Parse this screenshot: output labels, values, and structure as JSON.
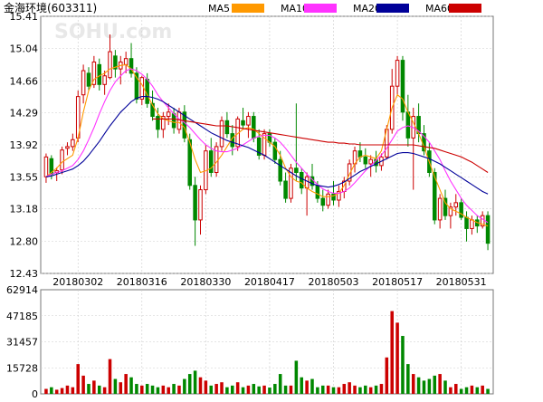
{
  "header": {
    "stock_title": "金海环境(603311)"
  },
  "watermark": "SOHU.com",
  "chart_data": [
    {
      "type": "candlestick",
      "title": "金海环境(603311)",
      "y_ticks": [
        "15.41",
        "15.04",
        "14.66",
        "14.29",
        "13.92",
        "13.55",
        "13.18",
        "12.80",
        "12.43"
      ],
      "ylim": [
        12.43,
        15.41
      ],
      "x_ticks": [
        "20180302",
        "20180316",
        "20180330",
        "20180417",
        "20180503",
        "20180517",
        "20180531"
      ],
      "legend": [
        {
          "name": "MA5",
          "color": "#ff9900"
        },
        {
          "name": "MA10",
          "color": "#ff33ff"
        },
        {
          "name": "MA20",
          "color": "#000099"
        },
        {
          "name": "MA60",
          "color": "#cc0000"
        }
      ],
      "up_color": "#cc0000",
      "down_color": "#008800",
      "candles": [
        [
          13.55,
          13.82,
          13.48,
          13.78
        ],
        [
          13.76,
          13.8,
          13.52,
          13.58
        ],
        [
          13.6,
          13.66,
          13.5,
          13.62
        ],
        [
          13.63,
          13.9,
          13.58,
          13.86
        ],
        [
          13.88,
          13.95,
          13.8,
          13.9
        ],
        [
          13.9,
          14.05,
          13.85,
          13.98
        ],
        [
          14.0,
          14.55,
          13.95,
          14.48
        ],
        [
          14.5,
          14.85,
          14.4,
          14.78
        ],
        [
          14.75,
          14.82,
          14.55,
          14.6
        ],
        [
          14.62,
          14.95,
          14.58,
          14.88
        ],
        [
          14.85,
          14.92,
          14.55,
          14.62
        ],
        [
          14.62,
          14.78,
          14.5,
          14.72
        ],
        [
          14.7,
          15.2,
          14.68,
          15.0
        ],
        [
          14.95,
          15.02,
          14.7,
          14.8
        ],
        [
          14.8,
          14.95,
          14.62,
          14.88
        ],
        [
          14.85,
          15.0,
          14.75,
          14.92
        ],
        [
          14.92,
          15.1,
          14.7,
          14.75
        ],
        [
          14.75,
          14.82,
          14.4,
          14.45
        ],
        [
          14.45,
          14.72,
          14.38,
          14.7
        ],
        [
          14.68,
          14.75,
          14.35,
          14.4
        ],
        [
          14.4,
          14.55,
          14.2,
          14.25
        ],
        [
          14.25,
          14.35,
          14.0,
          14.1
        ],
        [
          14.1,
          14.3,
          14.0,
          14.25
        ],
        [
          14.25,
          14.4,
          14.15,
          14.3
        ],
        [
          14.28,
          14.35,
          14.05,
          14.12
        ],
        [
          14.1,
          14.35,
          14.05,
          14.3
        ],
        [
          14.3,
          14.38,
          13.95,
          14.0
        ],
        [
          13.98,
          14.05,
          13.4,
          13.45
        ],
        [
          13.45,
          13.55,
          12.75,
          13.05
        ],
        [
          13.05,
          13.45,
          12.88,
          13.4
        ],
        [
          13.4,
          13.92,
          13.35,
          13.85
        ],
        [
          13.85,
          14.0,
          13.55,
          13.6
        ],
        [
          13.6,
          13.95,
          13.55,
          13.9
        ],
        [
          13.9,
          14.25,
          13.85,
          14.2
        ],
        [
          14.2,
          14.3,
          14.0,
          14.05
        ],
        [
          14.05,
          14.15,
          13.8,
          13.9
        ],
        [
          13.9,
          14.25,
          13.85,
          14.22
        ],
        [
          14.2,
          14.35,
          14.1,
          14.15
        ],
        [
          14.15,
          14.3,
          14.0,
          14.25
        ],
        [
          14.25,
          14.3,
          13.95,
          14.0
        ],
        [
          14.0,
          14.1,
          13.75,
          13.8
        ],
        [
          13.8,
          14.1,
          13.75,
          14.05
        ],
        [
          14.05,
          14.1,
          13.9,
          13.95
        ],
        [
          13.95,
          14.0,
          13.7,
          13.75
        ],
        [
          13.75,
          13.85,
          13.45,
          13.5
        ],
        [
          13.5,
          13.6,
          13.25,
          13.3
        ],
        [
          13.3,
          13.7,
          13.25,
          13.65
        ],
        [
          13.65,
          14.4,
          13.5,
          13.6
        ],
        [
          13.6,
          13.65,
          13.35,
          13.42
        ],
        [
          13.42,
          13.6,
          13.1,
          13.55
        ],
        [
          13.55,
          13.7,
          13.4,
          13.45
        ],
        [
          13.45,
          13.5,
          13.25,
          13.3
        ],
        [
          13.3,
          13.4,
          13.15,
          13.22
        ],
        [
          13.22,
          13.4,
          13.18,
          13.35
        ],
        [
          13.35,
          13.5,
          13.22,
          13.28
        ],
        [
          13.28,
          13.45,
          13.2,
          13.38
        ],
        [
          13.38,
          13.55,
          13.3,
          13.5
        ],
        [
          13.5,
          13.75,
          13.45,
          13.7
        ],
        [
          13.7,
          13.9,
          13.6,
          13.85
        ],
        [
          13.85,
          13.95,
          13.72,
          13.78
        ],
        [
          13.78,
          13.88,
          13.65,
          13.7
        ],
        [
          13.7,
          13.8,
          13.55,
          13.75
        ],
        [
          13.75,
          13.85,
          13.6,
          13.68
        ],
        [
          13.68,
          13.82,
          13.62,
          13.78
        ],
        [
          13.78,
          14.15,
          13.75,
          14.1
        ],
        [
          14.1,
          14.8,
          14.05,
          14.6
        ],
        [
          14.6,
          14.95,
          14.5,
          14.9
        ],
        [
          14.9,
          14.95,
          14.2,
          14.3
        ],
        [
          14.3,
          14.5,
          13.9,
          14.0
        ],
        [
          14.0,
          14.35,
          13.4,
          14.25
        ],
        [
          14.25,
          14.4,
          13.95,
          14.05
        ],
        [
          14.05,
          14.15,
          13.8,
          13.85
        ],
        [
          13.85,
          13.95,
          13.55,
          13.6
        ],
        [
          13.6,
          13.65,
          13.0,
          13.05
        ],
        [
          13.05,
          13.35,
          12.95,
          13.3
        ],
        [
          13.3,
          13.4,
          13.05,
          13.1
        ],
        [
          13.1,
          13.25,
          12.95,
          13.2
        ],
        [
          13.2,
          13.35,
          13.1,
          13.25
        ],
        [
          13.25,
          13.3,
          13.05,
          13.08
        ],
        [
          13.08,
          13.15,
          12.8,
          12.95
        ],
        [
          12.95,
          13.1,
          12.88,
          13.05
        ],
        [
          13.05,
          13.1,
          12.9,
          12.98
        ],
        [
          12.98,
          13.15,
          12.95,
          13.1
        ],
        [
          13.1,
          13.15,
          12.7,
          12.78
        ]
      ],
      "ma": {
        "MA5": [
          13.55,
          13.6,
          13.65,
          13.72,
          13.76,
          13.8,
          14.0,
          14.3,
          14.55,
          14.68,
          14.72,
          14.75,
          14.8,
          14.82,
          14.84,
          14.85,
          14.8,
          14.7,
          14.62,
          14.5,
          14.38,
          14.28,
          14.22,
          14.2,
          14.18,
          14.18,
          14.12,
          13.95,
          13.75,
          13.6,
          13.62,
          13.65,
          13.72,
          13.8,
          13.9,
          14.0,
          14.05,
          14.1,
          14.12,
          14.1,
          14.05,
          14.0,
          13.95,
          13.9,
          13.8,
          13.65,
          13.55,
          13.5,
          13.48,
          13.42,
          13.38,
          13.35,
          13.32,
          13.32,
          13.33,
          13.36,
          13.45,
          13.58,
          13.7,
          13.78,
          13.8,
          13.78,
          13.76,
          13.85,
          14.1,
          14.35,
          14.5,
          14.45,
          14.3,
          14.18,
          14.05,
          13.9,
          13.72,
          13.55,
          13.4,
          13.25,
          13.18,
          13.15,
          13.12,
          13.08,
          13.05,
          13.02,
          13.0,
          12.98
        ],
        "MA10": [
          13.55,
          13.58,
          13.6,
          13.62,
          13.65,
          13.68,
          13.75,
          13.85,
          13.98,
          14.12,
          14.28,
          14.42,
          14.55,
          14.65,
          14.72,
          14.78,
          14.8,
          14.78,
          14.74,
          14.68,
          14.6,
          14.5,
          14.42,
          14.35,
          14.28,
          14.22,
          14.18,
          14.12,
          14.05,
          13.98,
          13.92,
          13.88,
          13.85,
          13.84,
          13.84,
          13.86,
          13.88,
          13.92,
          13.96,
          14.0,
          14.02,
          14.03,
          14.03,
          14.0,
          13.95,
          13.88,
          13.8,
          13.72,
          13.65,
          13.58,
          13.52,
          13.46,
          13.41,
          13.38,
          13.36,
          13.36,
          13.38,
          13.42,
          13.48,
          13.55,
          13.62,
          13.68,
          13.74,
          13.8,
          13.88,
          13.98,
          14.08,
          14.12,
          14.14,
          14.12,
          14.08,
          14.02,
          13.95,
          13.85,
          13.75,
          13.62,
          13.5,
          13.4,
          13.3,
          13.22,
          13.16,
          13.1,
          13.06,
          13.02
        ],
        "MA20": [
          13.55,
          13.56,
          13.58,
          13.6,
          13.62,
          13.64,
          13.68,
          13.73,
          13.8,
          13.88,
          13.96,
          14.05,
          14.14,
          14.22,
          14.3,
          14.36,
          14.42,
          14.46,
          14.48,
          14.48,
          14.47,
          14.45,
          14.42,
          14.38,
          14.34,
          14.3,
          14.26,
          14.22,
          14.18,
          14.14,
          14.1,
          14.06,
          14.03,
          14.0,
          13.97,
          13.95,
          13.93,
          13.91,
          13.89,
          13.86,
          13.83,
          13.8,
          13.76,
          13.72,
          13.68,
          13.64,
          13.6,
          13.56,
          13.53,
          13.5,
          13.47,
          13.45,
          13.44,
          13.43,
          13.44,
          13.46,
          13.49,
          13.53,
          13.57,
          13.61,
          13.64,
          13.67,
          13.7,
          13.73,
          13.76,
          13.79,
          13.82,
          13.83,
          13.83,
          13.82,
          13.8,
          13.78,
          13.76,
          13.73,
          13.7,
          13.66,
          13.62,
          13.58,
          13.54,
          13.5,
          13.46,
          13.42,
          13.38,
          13.35
        ],
        "MA60": [
          null,
          null,
          null,
          null,
          null,
          null,
          null,
          null,
          null,
          null,
          null,
          null,
          null,
          null,
          null,
          null,
          null,
          null,
          null,
          null,
          14.22,
          14.22,
          14.22,
          14.22,
          14.22,
          14.21,
          14.2,
          14.19,
          14.18,
          14.17,
          14.16,
          14.15,
          14.14,
          14.14,
          14.14,
          14.13,
          14.12,
          14.11,
          14.1,
          14.09,
          14.08,
          14.07,
          14.06,
          14.05,
          14.04,
          14.03,
          14.02,
          14.01,
          14.0,
          13.99,
          13.98,
          13.97,
          13.96,
          13.95,
          13.95,
          13.94,
          13.94,
          13.93,
          13.93,
          13.92,
          13.92,
          13.92,
          13.92,
          13.92,
          13.92,
          13.92,
          13.92,
          13.92,
          13.92,
          13.92,
          13.91,
          13.9,
          13.89,
          13.88,
          13.86,
          13.84,
          13.82,
          13.8,
          13.78,
          13.75,
          13.72,
          13.68,
          13.64,
          13.6
        ]
      }
    },
    {
      "type": "bar",
      "title": "volume",
      "y_ticks": [
        "62914",
        "47185",
        "31457",
        "15728",
        "0"
      ],
      "ylim": [
        0,
        62914
      ],
      "values": [
        3000,
        4000,
        2500,
        3500,
        5000,
        4000,
        18000,
        11000,
        6000,
        8000,
        5000,
        4000,
        21000,
        9000,
        7000,
        12000,
        10000,
        6000,
        5000,
        6000,
        5000,
        4000,
        5000,
        4000,
        6000,
        5000,
        9000,
        12000,
        14000,
        10000,
        8000,
        5000,
        6000,
        7000,
        4000,
        5000,
        7000,
        4000,
        5000,
        6000,
        4500,
        5000,
        3800,
        6000,
        12000,
        5000,
        5000,
        20000,
        10000,
        8000,
        9000,
        4000,
        5000,
        5000,
        4000,
        4000,
        6000,
        7000,
        5000,
        4000,
        5000,
        4000,
        5000,
        6000,
        22000,
        50000,
        43000,
        35000,
        18000,
        12000,
        10000,
        8000,
        9000,
        11000,
        12000,
        8000,
        4000,
        6000,
        3000,
        4000,
        5000,
        4000,
        5000,
        3000
      ]
    }
  ]
}
